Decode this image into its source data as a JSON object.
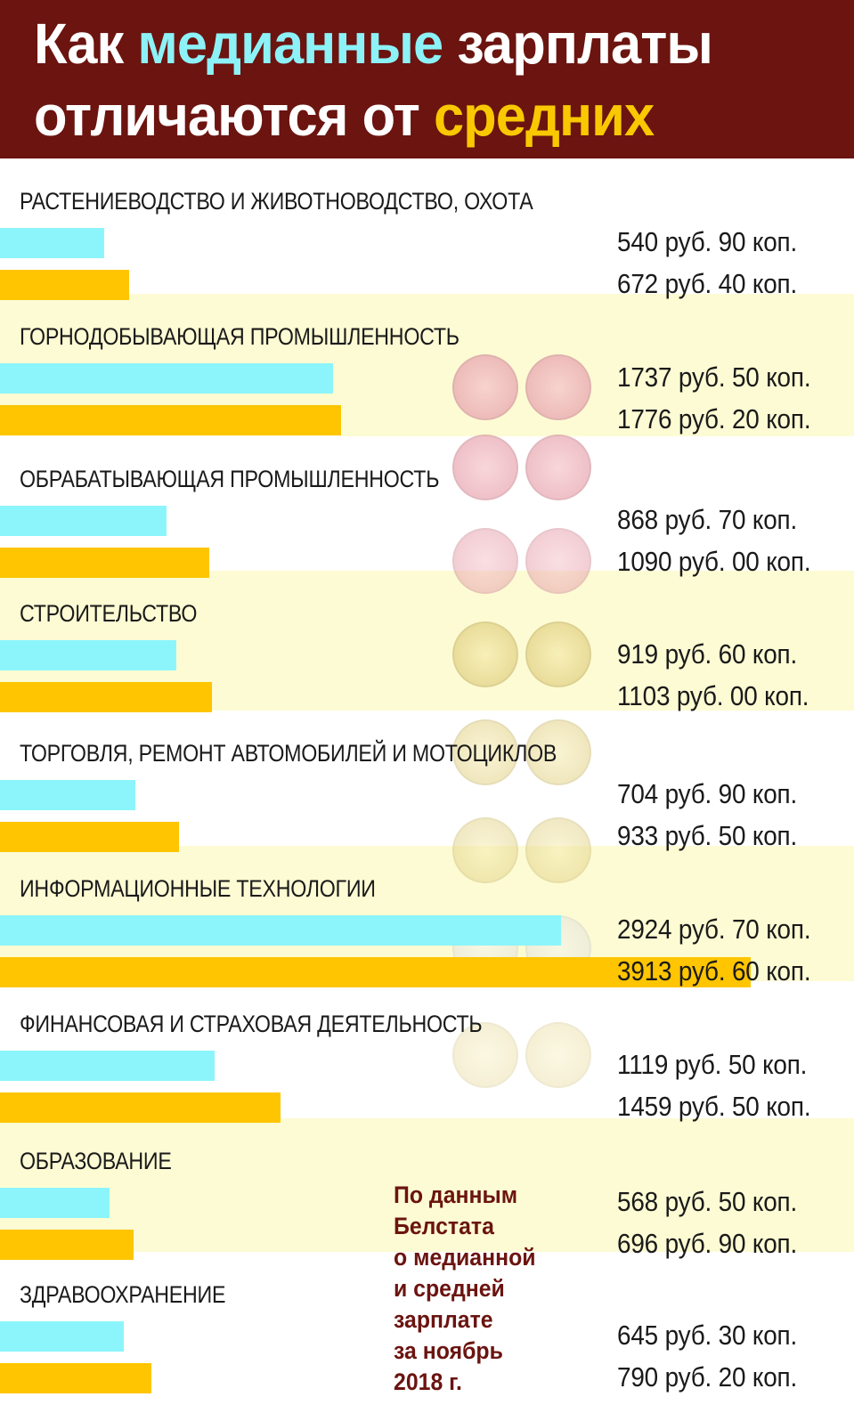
{
  "header": {
    "line1_part1": "Как ",
    "line1_highlight": "медианные",
    "line1_part2": " зарплаты",
    "line2_part1": "отличаются от ",
    "line2_highlight": "средних"
  },
  "source_note": [
    "По данным",
    "Белстата",
    "о медианной",
    "и средней",
    "зарплате",
    "за ноябрь",
    "2018 г."
  ],
  "colors": {
    "header_bg": "#6b1410",
    "median_bar": "#8cf5fb",
    "mean_bar": "#ffc500",
    "title_highlight_cyan": "#8cf2f7",
    "title_highlight_yellow": "#f9c800",
    "band_tint": "#fdfbd3"
  },
  "chart_data": {
    "type": "bar",
    "orientation": "horizontal",
    "categories": [
      "РАСТЕНИЕВОДСТВО И ЖИВОТНОВОДСТВО, ОХОТА",
      "ГОРНОДОБЫВАЮЩАЯ ПРОМЫШЛЕННОСТЬ",
      "ОБРАБАТЫВАЮЩАЯ ПРОМЫШЛЕННОСТЬ",
      "СТРОИТЕЛЬСТВО",
      "ТОРГОВЛЯ, РЕМОНТ АВТОМОБИЛЕЙ И МОТОЦИКЛОВ",
      "ИНФОРМАЦИОННЫЕ ТЕХНОЛОГИИ",
      "ФИНАНСОВАЯ И СТРАХОВАЯ ДЕЯТЕЛЬНОСТЬ",
      "ОБРАЗОВАНИЕ",
      "ЗДРАВООХРАНЕНИЕ"
    ],
    "series": [
      {
        "values": [
          540.9,
          1737.5,
          868.7,
          919.6,
          704.9,
          2924.7,
          1119.5,
          568.5,
          645.3
        ]
      },
      {
        "values": [
          672.4,
          1776.2,
          1090.0,
          1103.0,
          933.5,
          3913.6,
          1459.5,
          696.9,
          790.2
        ]
      }
    ],
    "value_labels": [
      [
        "540 руб. 90 коп.",
        "672 руб. 40 коп."
      ],
      [
        "1737 руб. 50 коп.",
        "1776 руб. 20 коп."
      ],
      [
        "868 руб. 70 коп.",
        "1090 руб. 00 коп."
      ],
      [
        "919 руб. 60 коп.",
        "1103 руб. 00 коп."
      ],
      [
        "704 руб. 90 коп.",
        "933 руб. 50 коп."
      ],
      [
        "2924 руб. 70 коп.",
        "3913 руб. 60 коп."
      ],
      [
        "1119 руб. 50 коп.",
        "1459 руб. 50 коп."
      ],
      [
        "568 руб. 50 коп.",
        "696 руб. 90 коп."
      ],
      [
        "645 руб. 30 коп.",
        "790 руб. 20 коп."
      ]
    ],
    "xlim": [
      0,
      4450
    ],
    "axes_visible": false,
    "grid": false
  }
}
